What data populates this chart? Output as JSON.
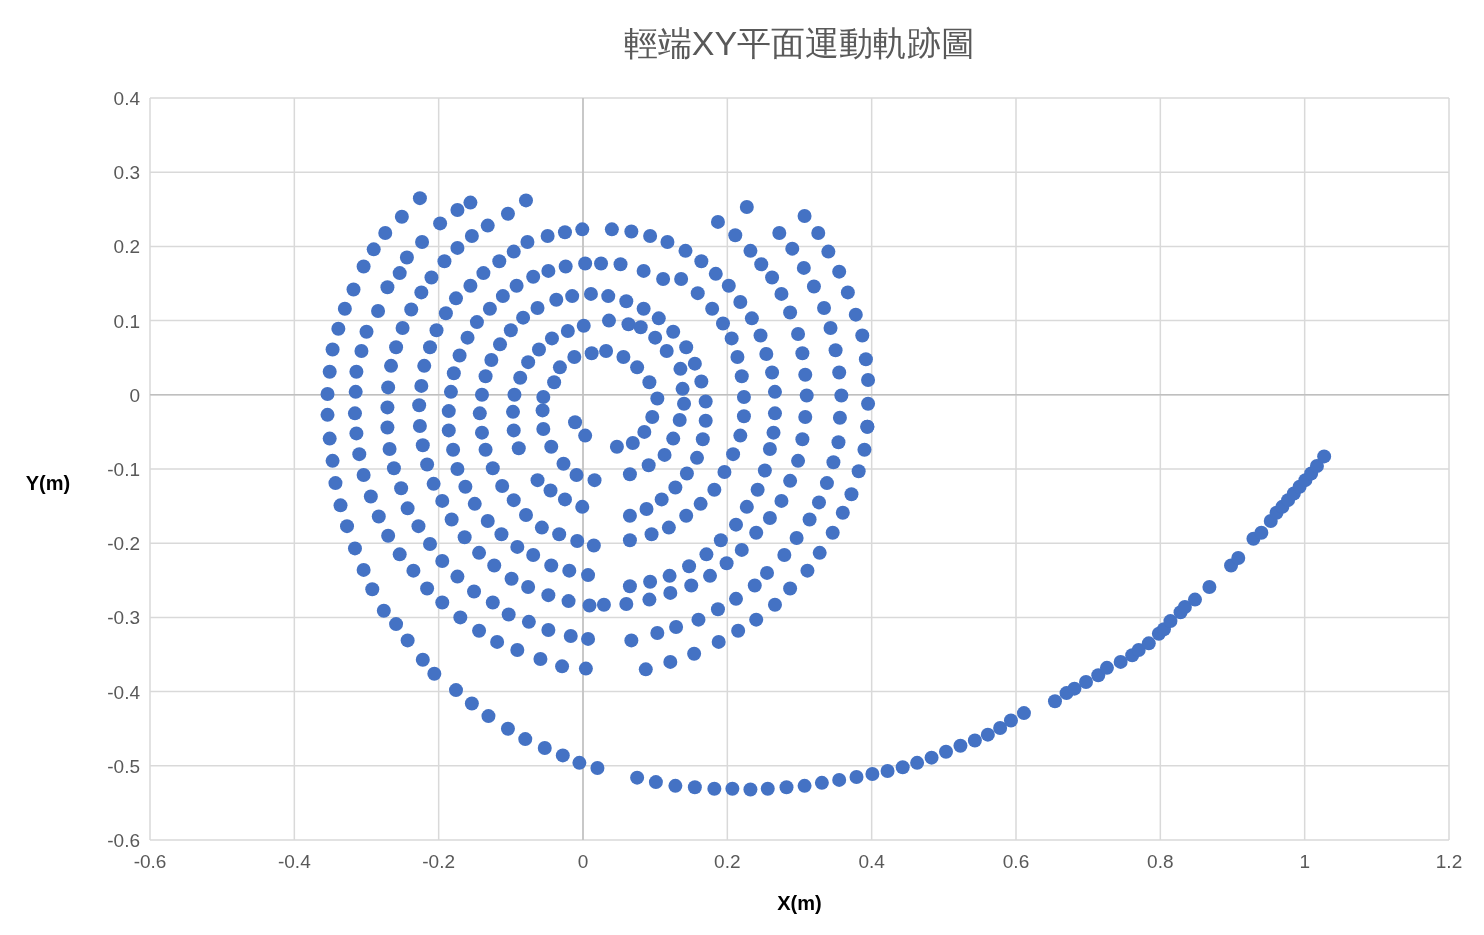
{
  "chart_data": {
    "type": "scatter",
    "title": "輕端XY平面運動軌跡圖",
    "xlabel": "X(m)",
    "ylabel": "Y(m)",
    "color": "#4472c4",
    "marker": "circle",
    "grid": true,
    "xlim": [
      -0.6,
      1.2
    ],
    "ylim": [
      -0.6,
      0.4
    ],
    "xticks": [
      -0.6,
      -0.4,
      -0.2,
      0,
      0.2,
      0.4,
      0.6,
      0.8,
      1,
      1.2
    ],
    "yticks": [
      -0.6,
      -0.5,
      -0.4,
      -0.3,
      -0.2,
      -0.1,
      0,
      0.1,
      0.2,
      0.3,
      0.4
    ],
    "x": [
      -0.226,
      -0.251,
      -0.274,
      -0.29,
      -0.304,
      -0.318,
      -0.33,
      -0.339,
      -0.347,
      -0.351,
      -0.354,
      -0.354,
      -0.351,
      -0.347,
      -0.343,
      -0.336,
      -0.327,
      -0.316,
      -0.304,
      -0.292,
      -0.276,
      -0.259,
      -0.243,
      -0.222,
      -0.206,
      -0.176,
      -0.154,
      -0.131,
      -0.104,
      -0.08,
      -0.053,
      -0.028,
      -0.005,
      0.02,
      0.075,
      0.101,
      0.128,
      0.155,
      0.182,
      0.207,
      0.232,
      0.256,
      0.282,
      0.307,
      0.331,
      0.355,
      0.379,
      0.401,
      0.422,
      0.443,
      0.463,
      0.483,
      0.503,
      0.523,
      0.543,
      0.561,
      0.578,
      0.593,
      0.611,
      0.654,
      0.67,
      0.681,
      0.697,
      0.714,
      0.726,
      0.745,
      0.761,
      0.77,
      0.784,
      0.798,
      0.805,
      0.814,
      0.828,
      0.834,
      0.848,
      0.868,
      0.898,
      0.908,
      0.929,
      0.94,
      0.953,
      0.961,
      0.969,
      0.977,
      0.985,
      0.993,
      1.001,
      1.009,
      1.017,
      1.027,
      -0.156,
      -0.174,
      -0.198,
      -0.223,
      -0.244,
      -0.254,
      -0.271,
      -0.284,
      -0.3,
      -0.307,
      -0.314,
      -0.315,
      -0.316,
      -0.314,
      -0.31,
      -0.304,
      -0.294,
      -0.283,
      -0.27,
      -0.254,
      -0.235,
      -0.216,
      -0.195,
      -0.17,
      -0.144,
      -0.119,
      -0.091,
      -0.059,
      -0.029,
      0.004,
      0.087,
      0.121,
      0.154,
      0.188,
      0.215,
      0.24,
      0.266,
      0.287,
      0.311,
      0.328,
      0.346,
      0.36,
      0.372,
      0.382,
      0.39,
      0.394,
      0.395,
      0.395,
      0.392,
      0.387,
      0.378,
      0.367,
      0.355,
      0.34,
      0.326,
      0.307,
      0.272,
      0.29,
      0.306,
      0.32,
      0.334,
      0.343,
      0.35,
      0.355,
      0.358,
      0.356,
      0.354,
      0.347,
      0.338,
      0.327,
      0.314,
      0.296,
      0.279,
      0.255,
      0.238,
      0.212,
      0.187,
      0.16,
      0.129,
      0.103,
      0.067,
      0.007,
      -0.017,
      -0.048,
      -0.075,
      -0.103,
      -0.125,
      -0.151,
      -0.174,
      -0.195,
      -0.212,
      -0.228,
      -0.243,
      -0.252,
      -0.262,
      -0.268,
      -0.271,
      -0.271,
      -0.27,
      -0.266,
      -0.259,
      -0.25,
      -0.238,
      -0.224,
      -0.21,
      -0.192,
      -0.174,
      -0.154,
      -0.132,
      -0.104,
      -0.079,
      -0.096,
      -0.116,
      -0.138,
      -0.156,
      -0.176,
      -0.19,
      -0.203,
      -0.212,
      -0.22,
      -0.224,
      -0.227,
      -0.226,
      -0.222,
      -0.216,
      -0.207,
      -0.195,
      -0.182,
      -0.164,
      -0.144,
      -0.123,
      -0.099,
      -0.076,
      -0.048,
      -0.02,
      0.009,
      0.029,
      0.06,
      0.092,
      0.121,
      0.15,
      0.176,
      0.199,
      0.22,
      0.24,
      0.259,
      0.275,
      0.287,
      0.298,
      0.304,
      0.308,
      0.31,
      0.308,
      0.304,
      0.298,
      0.287,
      0.275,
      0.262,
      0.247,
      0.232,
      0.211,
      0.187,
      0.227,
      -0.077,
      -0.049,
      -0.025,
      -0.001,
      0.04,
      0.067,
      0.093,
      0.117,
      0.142,
      0.164,
      0.184,
      0.202,
      0.218,
      0.234,
      0.246,
      0.254,
      0.262,
      0.266,
      0.266,
      0.264,
      0.259,
      0.252,
      0.242,
      0.227,
      0.212,
      0.191,
      0.171,
      0.147,
      0.12,
      0.093,
      0.065,
      0.007,
      -0.019,
      -0.044,
      -0.069,
      -0.091,
      -0.113,
      -0.132,
      -0.15,
      -0.163,
      -0.174,
      -0.18,
      -0.186,
      -0.186,
      -0.183,
      -0.179,
      -0.171,
      -0.16,
      -0.147,
      -0.129,
      -0.111,
      -0.092,
      -0.069,
      -0.048,
      -0.024,
      0.003,
      0.025,
      0.052,
      0.084,
      0.111,
      0.136,
      0.159,
      0.179,
      0.194,
      0.206,
      0.214,
      0.22,
      0.223,
      0.223,
      0.218,
      0.208,
      0.196,
      0.182,
      0.163,
      0.143,
      0.119,
      0.095,
      0.065,
      0.015,
      -0.008,
      -0.033,
      -0.057,
      -0.079,
      -0.096,
      -0.112,
      -0.125,
      -0.135,
      -0.14,
      -0.143,
      -0.14,
      -0.135,
      -0.127,
      -0.115,
      -0.1,
      -0.083,
      -0.063,
      -0.037,
      -0.015,
      0.011,
      0.035,
      0.06,
      0.084,
      0.105,
      0.125,
      0.143,
      0.155,
      0.164,
      0.17,
      0.17,
      0.166,
      0.158,
      0.144,
      0.128,
      0.109,
      0.088,
      0.065,
      -0.001,
      -0.025,
      -0.045,
      -0.063,
      -0.089,
      -0.096,
      -0.097,
      -0.095,
      -0.087,
      -0.076,
      -0.061,
      -0.043,
      -0.021,
      0.001,
      0.036,
      0.063,
      0.08,
      0.1,
      0.116,
      0.135,
      0.138,
      0.14,
      0.134,
      0.125,
      0.113,
      0.091,
      0.065,
      -0.009,
      0.016,
      -0.027,
      -0.044,
      -0.055,
      -0.056,
      -0.055,
      -0.04,
      -0.032,
      -0.012,
      0.012,
      0.032,
      0.056,
      0.075,
      0.092,
      0.103,
      0.096,
      0.085,
      0.069,
      0.047,
      -0.011,
      0.003,
      0.394
    ],
    "values": [
      0.265,
      0.24,
      0.218,
      0.196,
      0.173,
      0.142,
      0.116,
      0.089,
      0.061,
      0.031,
      0.001,
      -0.027,
      -0.059,
      -0.089,
      -0.119,
      -0.149,
      -0.177,
      -0.207,
      -0.236,
      -0.262,
      -0.291,
      -0.309,
      -0.331,
      -0.357,
      -0.376,
      -0.398,
      -0.416,
      -0.433,
      -0.45,
      -0.464,
      -0.476,
      -0.486,
      -0.496,
      -0.503,
      -0.516,
      -0.522,
      -0.527,
      -0.529,
      -0.531,
      -0.531,
      -0.532,
      -0.531,
      -0.529,
      -0.527,
      -0.523,
      -0.519,
      -0.515,
      -0.511,
      -0.507,
      -0.502,
      -0.496,
      -0.489,
      -0.481,
      -0.473,
      -0.466,
      -0.458,
      -0.449,
      -0.439,
      -0.429,
      -0.413,
      -0.402,
      -0.396,
      -0.387,
      -0.378,
      -0.368,
      -0.36,
      -0.351,
      -0.344,
      -0.335,
      -0.322,
      -0.316,
      -0.305,
      -0.293,
      -0.286,
      -0.276,
      -0.259,
      -0.23,
      -0.22,
      -0.194,
      -0.186,
      -0.17,
      -0.159,
      -0.151,
      -0.142,
      -0.133,
      -0.124,
      -0.115,
      -0.106,
      -0.096,
      -0.083,
      0.259,
      0.249,
      0.231,
      0.206,
      0.185,
      0.164,
      0.145,
      0.113,
      0.085,
      0.059,
      0.031,
      0.004,
      -0.025,
      -0.052,
      -0.08,
      -0.108,
      -0.137,
      -0.164,
      -0.19,
      -0.215,
      -0.237,
      -0.261,
      -0.28,
      -0.3,
      -0.318,
      -0.333,
      -0.344,
      -0.356,
      -0.366,
      -0.369,
      -0.37,
      -0.36,
      -0.349,
      -0.333,
      -0.318,
      -0.303,
      -0.283,
      -0.261,
      -0.237,
      -0.213,
      -0.186,
      -0.159,
      -0.134,
      -0.103,
      -0.074,
      -0.043,
      -0.012,
      0.02,
      0.048,
      0.08,
      0.108,
      0.138,
      0.166,
      0.193,
      0.218,
      0.241,
      0.218,
      0.197,
      0.171,
      0.146,
      0.117,
      0.09,
      0.06,
      0.03,
      -0.001,
      -0.031,
      -0.064,
      -0.091,
      -0.119,
      -0.145,
      -0.168,
      -0.193,
      -0.216,
      -0.24,
      -0.257,
      -0.275,
      -0.289,
      -0.303,
      -0.313,
      -0.321,
      -0.331,
      -0.329,
      -0.325,
      -0.317,
      -0.306,
      -0.296,
      -0.28,
      -0.265,
      -0.245,
      -0.224,
      -0.201,
      -0.177,
      -0.153,
      -0.126,
      -0.099,
      -0.073,
      -0.044,
      -0.017,
      0.01,
      0.039,
      0.064,
      0.09,
      0.115,
      0.138,
      0.158,
      0.18,
      0.198,
      0.214,
      0.228,
      0.244,
      0.262,
      0.193,
      0.18,
      0.164,
      0.147,
      0.13,
      0.11,
      0.087,
      0.064,
      0.039,
      0.012,
      -0.014,
      -0.042,
      -0.068,
      -0.094,
      -0.12,
      -0.143,
      -0.168,
      -0.192,
      -0.213,
      -0.23,
      -0.248,
      -0.259,
      -0.27,
      -0.278,
      -0.284,
      -0.283,
      -0.282,
      -0.276,
      -0.267,
      -0.257,
      -0.244,
      -0.227,
      -0.209,
      -0.186,
      -0.166,
      -0.143,
      -0.116,
      -0.089,
      -0.06,
      -0.03,
      -0.001,
      0.027,
      0.056,
      0.082,
      0.111,
      0.136,
      0.158,
      0.176,
      0.194,
      0.215,
      0.233,
      0.253,
      0.206,
      0.214,
      0.219,
      0.223,
      0.223,
      0.22,
      0.214,
      0.206,
      0.194,
      0.18,
      0.163,
      0.147,
      0.125,
      0.103,
      0.08,
      0.055,
      0.03,
      0.004,
      -0.025,
      -0.051,
      -0.073,
      -0.102,
      -0.128,
      -0.151,
      -0.175,
      -0.196,
      -0.215,
      -0.231,
      -0.244,
      -0.252,
      -0.258,
      -0.243,
      -0.237,
      -0.23,
      -0.216,
      -0.205,
      -0.188,
      -0.17,
      -0.147,
      -0.124,
      -0.1,
      -0.074,
      -0.048,
      -0.022,
      0.004,
      0.029,
      0.053,
      0.077,
      0.098,
      0.116,
      0.133,
      0.147,
      0.159,
      0.167,
      0.173,
      0.177,
      0.177,
      0.176,
      0.167,
      0.156,
      0.156,
      0.137,
      0.116,
      0.096,
      0.076,
      0.051,
      0.025,
      -0.003,
      -0.029,
      -0.055,
      -0.08,
      -0.104,
      -0.128,
      -0.147,
      -0.163,
      -0.179,
      -0.188,
      -0.196,
      -0.203,
      -0.197,
      -0.188,
      -0.179,
      -0.162,
      -0.142,
      -0.123,
      -0.099,
      -0.074,
      -0.051,
      -0.025,
      0,
      0.025,
      0.047,
      0.068,
      0.087,
      0.104,
      0.117,
      0.128,
      0.133,
      0.136,
      0.133,
      0.126,
      0.116,
      0.103,
      0.085,
      0.064,
      0.042,
      0.018,
      -0.009,
      -0.035,
      -0.06,
      -0.085,
      -0.106,
      -0.125,
      -0.141,
      -0.154,
      -0.163,
      -0.151,
      -0.141,
      -0.129,
      -0.115,
      -0.072,
      -0.048,
      -0.023,
      0,
      0.023,
      0.044,
      0.061,
      0.076,
      0.086,
      0.093,
      0.1,
      0.095,
      0.091,
      0.077,
      0.059,
      0.035,
      0.008,
      -0.012,
      -0.034,
      -0.059,
      -0.081,
      -0.095,
      -0.107,
      -0.108,
      -0.115,
      -0.093,
      -0.07,
      -0.046,
      -0.021,
      -0.003,
      0.017,
      0.037,
      0.051,
      0.056,
      0.059,
      0.051,
      0.037,
      0.017,
      -0.005,
      -0.03,
      -0.05,
      -0.065,
      -0.07,
      -0.037,
      -0.055,
      -0.043
    ]
  }
}
